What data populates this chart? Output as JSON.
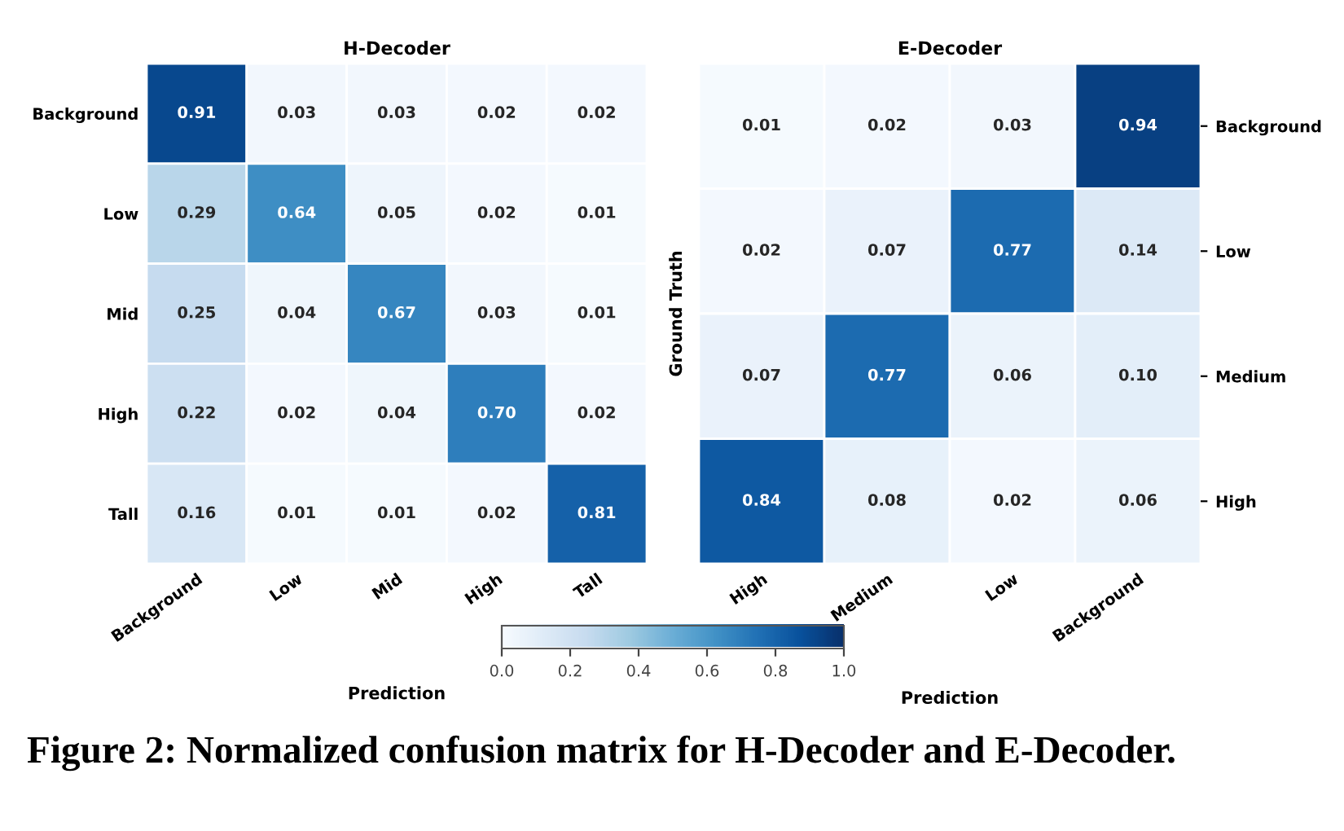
{
  "chart_data": [
    {
      "type": "heatmap",
      "title": "H-Decoder",
      "xlabel": "Prediction",
      "categories": [
        "Background",
        "Low",
        "Mid",
        "High",
        "Tall"
      ],
      "y_categories": [
        "Background",
        "Low",
        "Mid",
        "High",
        "Tall"
      ],
      "cells": [
        [
          0.91,
          0.03,
          0.03,
          0.02,
          0.02
        ],
        [
          0.29,
          0.64,
          0.05,
          0.02,
          0.01
        ],
        [
          0.25,
          0.04,
          0.67,
          0.03,
          0.01
        ],
        [
          0.22,
          0.02,
          0.04,
          0.7,
          0.02
        ],
        [
          0.16,
          0.01,
          0.01,
          0.02,
          0.81
        ]
      ],
      "cell_labels": [
        [
          "0.91",
          "0.03",
          "0.03",
          "0.02",
          "0.02"
        ],
        [
          "0.29",
          "0.64",
          "0.05",
          "0.02",
          "0.01"
        ],
        [
          "0.25",
          "0.04",
          "0.67",
          "0.03",
          "0.01"
        ],
        [
          "0.22",
          "0.02",
          "0.04",
          "0.70",
          "0.02"
        ],
        [
          "0.16",
          "0.01",
          "0.01",
          "0.02",
          "0.81"
        ]
      ],
      "clim": [
        0,
        1
      ],
      "cticks": [
        {
          "value": 0,
          "label": "0.0"
        },
        {
          "value": 0.2,
          "label": "0.2"
        },
        {
          "value": 0.4,
          "label": "0.4"
        },
        {
          "value": 0.6,
          "label": "0.6"
        },
        {
          "value": 0.8,
          "label": "0.8"
        },
        {
          "value": 1,
          "label": "1.0"
        }
      ],
      "annotations": [
        "Figure 2: Normalized confusion matrix for H-Decoder and E-Decoder."
      ]
    },
    {
      "type": "heatmap",
      "title": "E-Decoder",
      "xlabel": "Prediction",
      "ylabel": "Ground Truth",
      "categories": [
        "High",
        "Medium",
        "Low",
        "Background"
      ],
      "y_categories": [
        "Background",
        "Low",
        "Medium",
        "High"
      ],
      "cells": [
        [
          0.01,
          0.02,
          0.03,
          0.94
        ],
        [
          0.02,
          0.07,
          0.77,
          0.14
        ],
        [
          0.07,
          0.77,
          0.06,
          0.1
        ],
        [
          0.84,
          0.08,
          0.02,
          0.06
        ]
      ],
      "cell_labels": [
        [
          "0.01",
          "0.02",
          "0.03",
          "0.94"
        ],
        [
          "0.02",
          "0.07",
          "0.77",
          "0.14"
        ],
        [
          "0.07",
          "0.77",
          "0.06",
          "0.10"
        ],
        [
          "0.84",
          "0.08",
          "0.02",
          "0.06"
        ]
      ]
    }
  ]
}
